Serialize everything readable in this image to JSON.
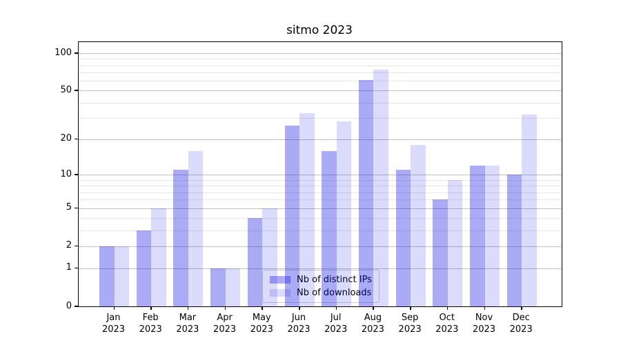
{
  "title": "sitmo 2023",
  "chart_data": {
    "type": "bar",
    "title": "sitmo 2023",
    "scale": "log1p",
    "grid": true,
    "legend_position": "lower-center",
    "categories": [
      "Jan 2023",
      "Feb 2023",
      "Mar 2023",
      "Apr 2023",
      "May 2023",
      "Jun 2023",
      "Jul 2023",
      "Aug 2023",
      "Sep 2023",
      "Oct 2023",
      "Nov 2023",
      "Dec 2023"
    ],
    "month_labels": [
      "Jan",
      "Feb",
      "Mar",
      "Apr",
      "May",
      "Jun",
      "Jul",
      "Aug",
      "Sep",
      "Oct",
      "Nov",
      "Dec"
    ],
    "year_label": "2023",
    "series": [
      {
        "name": "Nb of distinct IPs",
        "color": "rgba(13,13,226,0.35)",
        "values": [
          2,
          3,
          11,
          1,
          4,
          26,
          16,
          61,
          11,
          6,
          12,
          10
        ]
      },
      {
        "name": "Nb of downloads",
        "color": "rgba(13,13,226,0.15)",
        "values": [
          2,
          5,
          16,
          1,
          5,
          33,
          28,
          74,
          18,
          9,
          12,
          32
        ]
      }
    ],
    "xlabel": "",
    "ylabel": "",
    "ylim": [
      0,
      123
    ],
    "y_major_ticks": [
      0,
      1,
      2,
      5,
      10,
      20,
      50,
      100
    ],
    "y_minor_ticks": [
      3,
      4,
      6,
      7,
      8,
      9,
      30,
      40,
      60,
      70,
      80,
      90
    ]
  },
  "colors": {
    "bar_dark_hex": "#aaaaf5",
    "bar_light_hex": "#dbdbfc",
    "grid_major": "#c0c0c0",
    "grid_minor": "#e7e7e7",
    "axis": "#000000",
    "legend_border": "#cccccc"
  }
}
